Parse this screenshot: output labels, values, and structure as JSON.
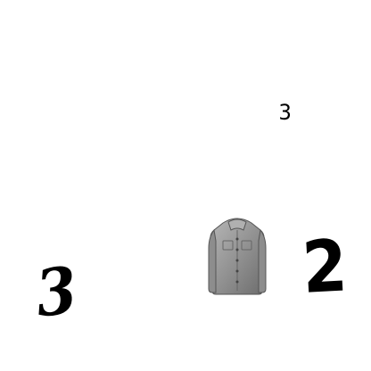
{
  "digits": {
    "small": "3",
    "left": "3",
    "right": "2"
  },
  "items": {
    "shirt_icon": "shirt-icon"
  },
  "colors": {
    "background": "#ffffff",
    "ink": "#000000",
    "shirt_gray": "#9a9a9a"
  }
}
